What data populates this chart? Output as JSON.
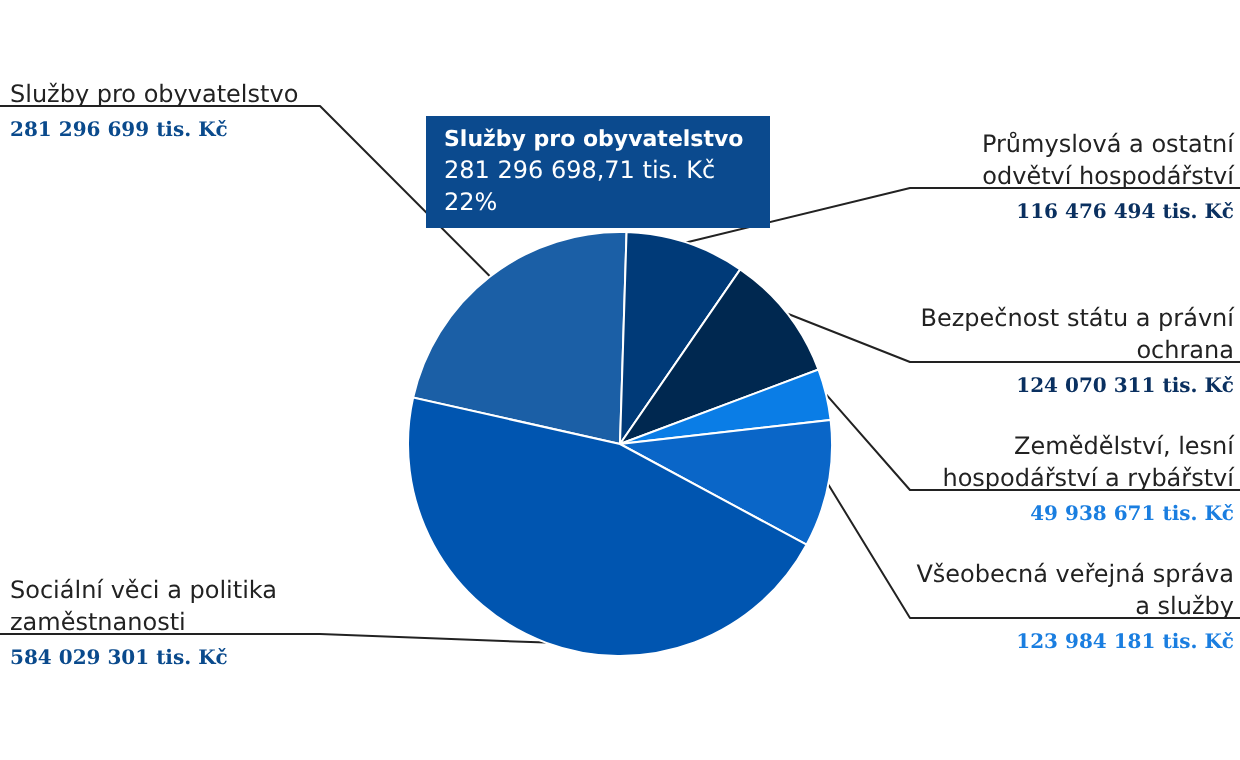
{
  "chart_data": {
    "type": "pie",
    "categories": [
      "Služby pro obyvatelstvo",
      "Průmyslová a ostatní odvětví hospodářství",
      "Bezpečnost státu a právní ochrana",
      "Zemědělství, lesní hospodářství a rybářství",
      "Všeobecná veřejná správa a služby",
      "Sociální věci a politika zaměstnanosti"
    ],
    "values": [
      281296699,
      116476494,
      124070311,
      49938671,
      123984181,
      584029301
    ],
    "colors": [
      "#1b5fa6",
      "#003a78",
      "#002850",
      "#0a7de6",
      "#0a66c8",
      "#0055b0"
    ],
    "value_labels": [
      "281 296 699 tis. Kč",
      "116 476 494 tis. Kč",
      "124 070 311 tis. Kč",
      "49 938 671 tis. Kč",
      "123 984 181 tis. Kč",
      "584 029 301 tis. Kč"
    ],
    "annotations": [
      "Služby pro obyvatelstvo",
      "281 296 698,71 tis. Kč",
      "22%"
    ]
  }
}
